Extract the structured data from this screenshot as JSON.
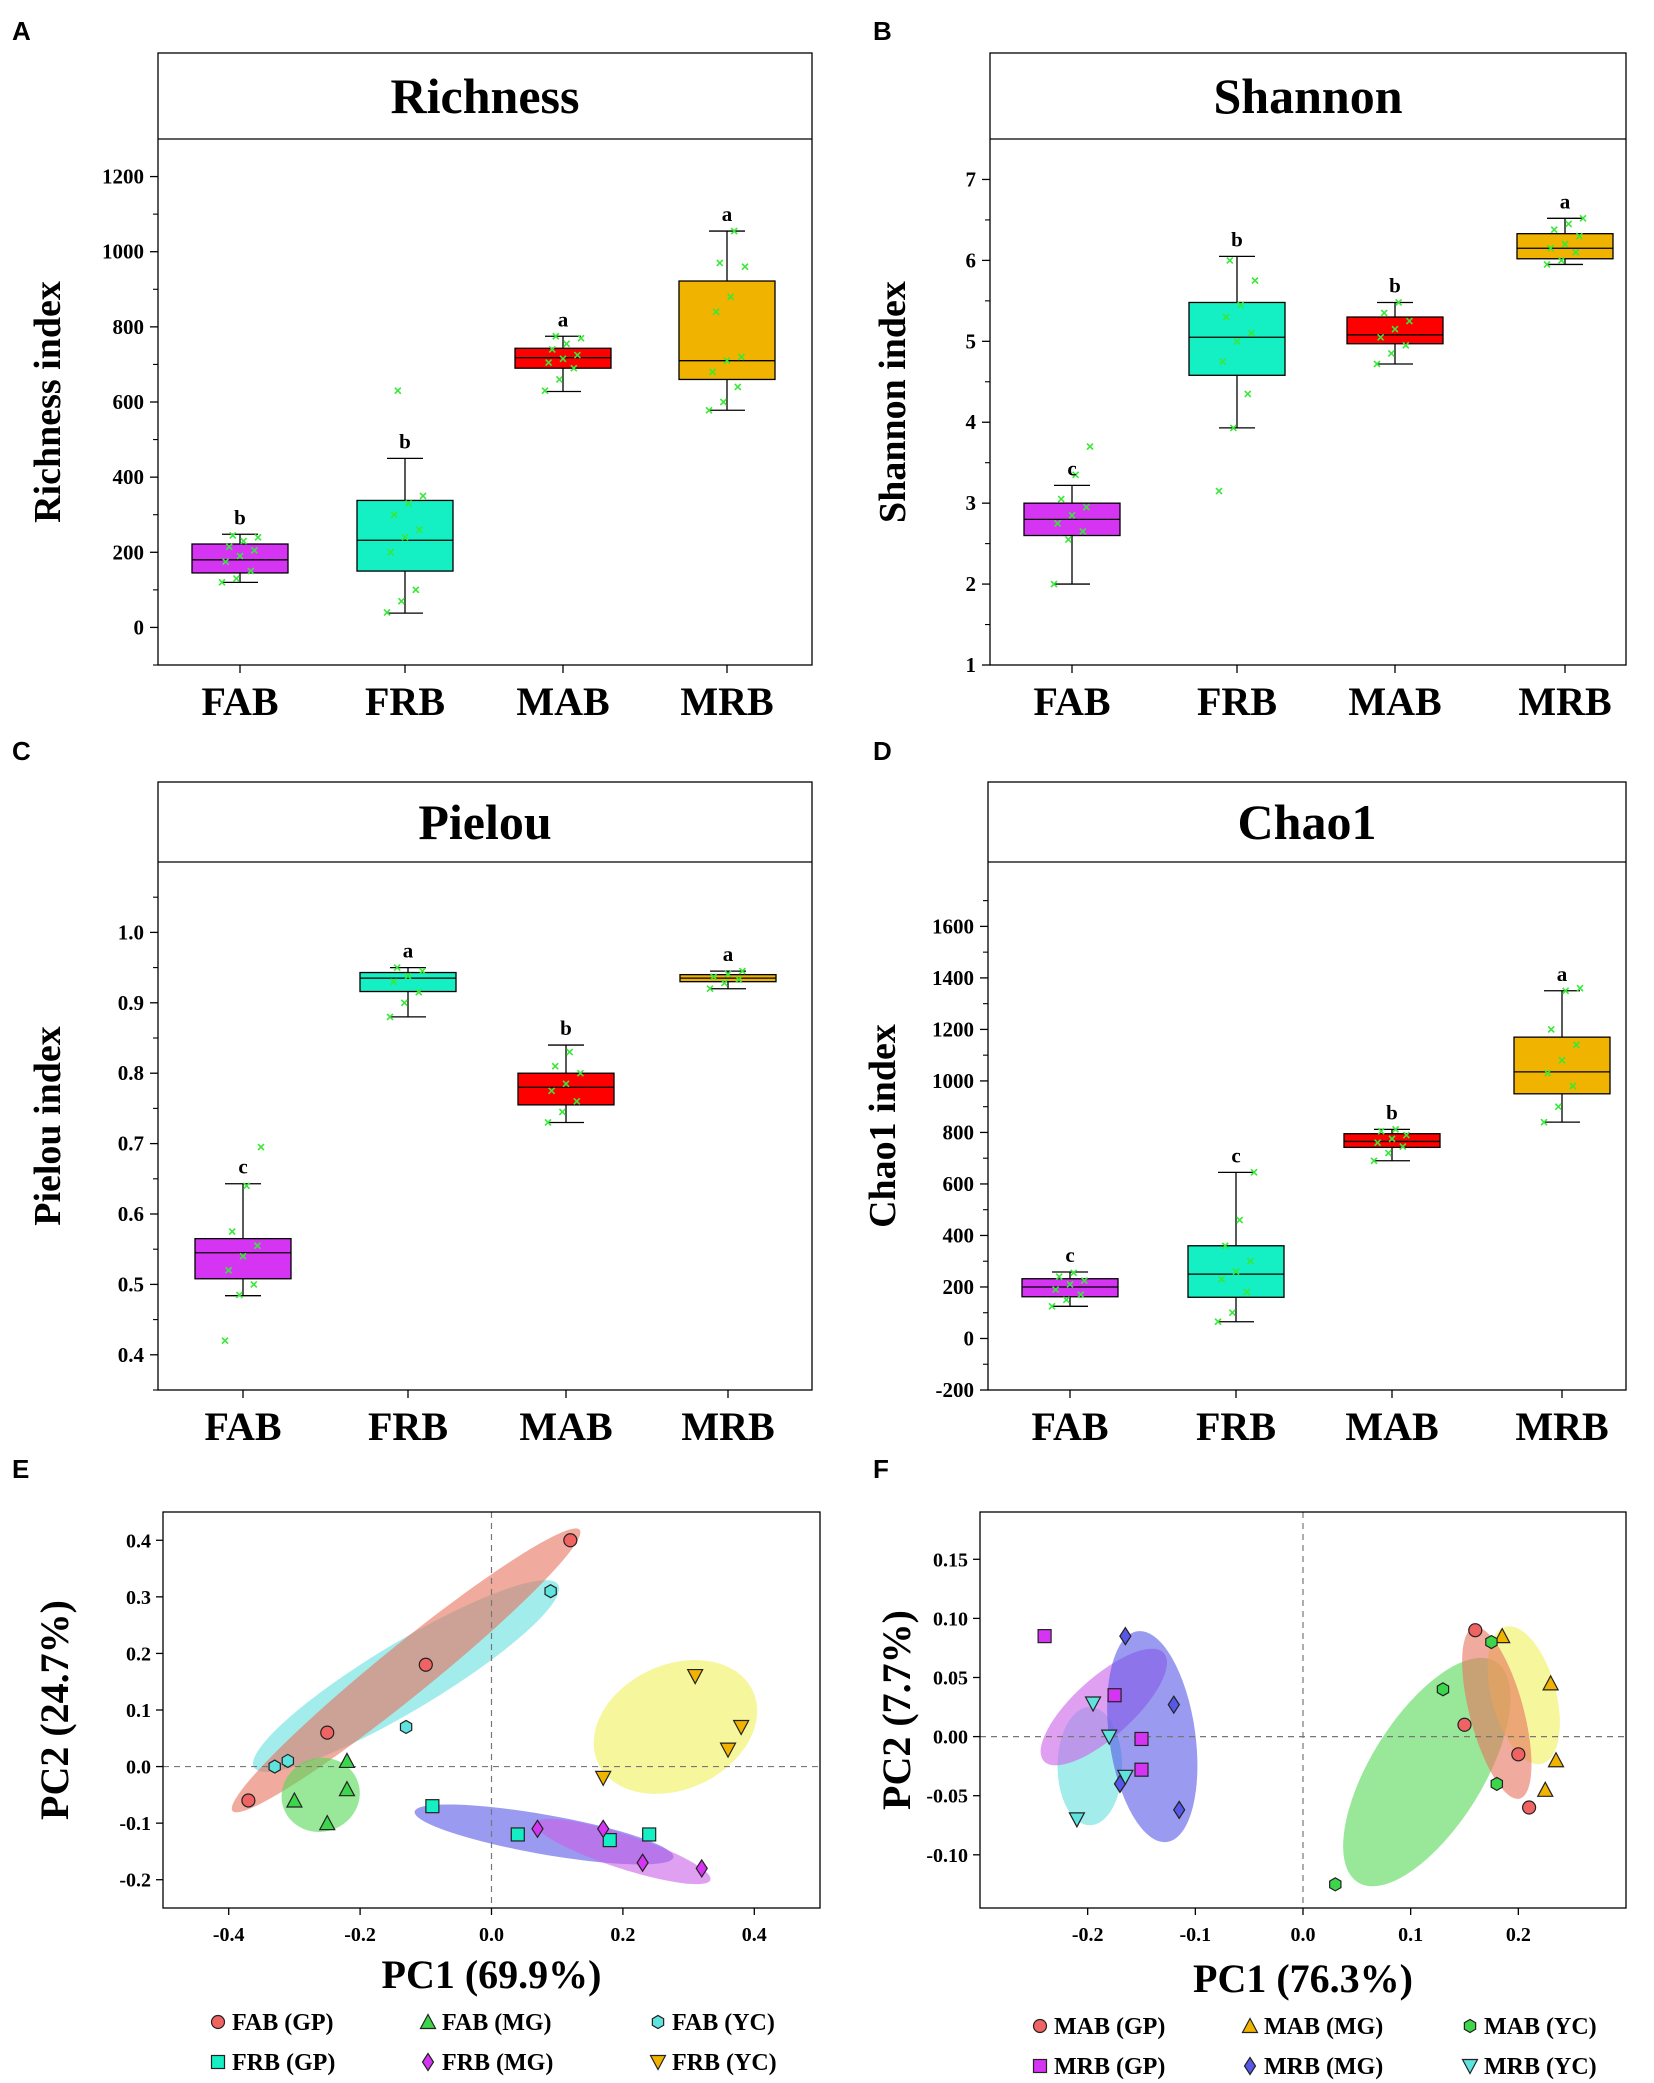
{
  "figure": {
    "panel_letters": [
      "A",
      "B",
      "C",
      "D",
      "E",
      "F"
    ]
  },
  "colors": {
    "FAB": "#d535f2",
    "FRB": "#14efc3",
    "MAB": "#ff0000",
    "MRB": "#f0b400",
    "jitter": "#38e838",
    "GP_fill": "#f06363",
    "MG_fill": "#3dd64b",
    "YC_fill": "#5fe3df",
    "ell_GP": "#e8725e",
    "ell_MG": "#55d957",
    "ell_YC": "#66e0e0",
    "ell_FRB_GP": "#5757e8",
    "ell_FRB_MG": "#cc60e8",
    "ell_FRB_YC": "#f0f05a"
  },
  "chart_data": [
    {
      "type": "box",
      "panel": "A",
      "title": "Richness",
      "ylabel": "Richness index",
      "ylim": [
        -100,
        1300
      ],
      "yticks": [
        0,
        200,
        400,
        600,
        800,
        1000,
        1200
      ],
      "categories": [
        "FAB",
        "FRB",
        "MAB",
        "MRB"
      ],
      "boxes": [
        {
          "min": 120,
          "q1": 145,
          "median": 180,
          "q3": 222,
          "max": 248,
          "letter": "b",
          "points": [
            120,
            130,
            150,
            175,
            190,
            205,
            215,
            230,
            240,
            245
          ]
        },
        {
          "min": 38,
          "q1": 150,
          "median": 232,
          "q3": 338,
          "max": 450,
          "letter": "b",
          "points": [
            40,
            70,
            100,
            200,
            240,
            260,
            300,
            330,
            350,
            630
          ]
        },
        {
          "min": 628,
          "q1": 690,
          "median": 718,
          "q3": 743,
          "max": 775,
          "letter": "a",
          "points": [
            630,
            660,
            690,
            705,
            715,
            725,
            740,
            755,
            770,
            775
          ]
        },
        {
          "min": 578,
          "q1": 660,
          "median": 710,
          "q3": 922,
          "max": 1055,
          "letter": "a",
          "points": [
            578,
            600,
            640,
            680,
            710,
            720,
            840,
            880,
            960,
            970,
            1055
          ]
        }
      ]
    },
    {
      "type": "box",
      "panel": "B",
      "title": "Shannon",
      "ylabel": "Shannon index",
      "ylim": [
        1,
        7.5
      ],
      "yticks": [
        1,
        2,
        3,
        4,
        5,
        6,
        7
      ],
      "categories": [
        "FAB",
        "FRB",
        "MAB",
        "MRB"
      ],
      "boxes": [
        {
          "min": 2.0,
          "q1": 2.6,
          "median": 2.8,
          "q3": 3.0,
          "max": 3.22,
          "letter": "c",
          "points": [
            2.0,
            2.55,
            2.65,
            2.75,
            2.85,
            2.95,
            3.05,
            3.35,
            3.7
          ]
        },
        {
          "min": 3.93,
          "q1": 4.58,
          "median": 5.05,
          "q3": 5.48,
          "max": 6.05,
          "letter": "b",
          "points": [
            3.15,
            3.93,
            4.35,
            4.75,
            5.0,
            5.1,
            5.3,
            5.45,
            5.75,
            6.0
          ]
        },
        {
          "min": 4.72,
          "q1": 4.97,
          "median": 5.08,
          "q3": 5.3,
          "max": 5.48,
          "letter": "b",
          "points": [
            4.72,
            4.85,
            4.95,
            5.05,
            5.15,
            5.25,
            5.35,
            5.48
          ]
        },
        {
          "min": 5.95,
          "q1": 6.02,
          "median": 6.15,
          "q3": 6.33,
          "max": 6.52,
          "letter": "a",
          "points": [
            5.95,
            6.0,
            6.1,
            6.15,
            6.2,
            6.3,
            6.38,
            6.45,
            6.52
          ]
        }
      ]
    },
    {
      "type": "box",
      "panel": "C",
      "title": "Pielou",
      "ylabel": "Pielou index",
      "ylim": [
        0.35,
        1.1
      ],
      "yticks": [
        0.4,
        0.5,
        0.6,
        0.7,
        0.8,
        0.9,
        1.0
      ],
      "categories": [
        "FAB",
        "FRB",
        "MAB",
        "MRB"
      ],
      "boxes": [
        {
          "min": 0.484,
          "q1": 0.508,
          "median": 0.545,
          "q3": 0.565,
          "max": 0.643,
          "letter": "c",
          "points": [
            0.42,
            0.485,
            0.5,
            0.52,
            0.54,
            0.555,
            0.575,
            0.64,
            0.695
          ]
        },
        {
          "min": 0.88,
          "q1": 0.916,
          "median": 0.935,
          "q3": 0.943,
          "max": 0.95,
          "letter": "a",
          "points": [
            0.88,
            0.9,
            0.915,
            0.93,
            0.938,
            0.945,
            0.95
          ]
        },
        {
          "min": 0.73,
          "q1": 0.755,
          "median": 0.78,
          "q3": 0.8,
          "max": 0.84,
          "letter": "b",
          "points": [
            0.73,
            0.745,
            0.76,
            0.775,
            0.785,
            0.8,
            0.81,
            0.83
          ]
        },
        {
          "min": 0.92,
          "q1": 0.93,
          "median": 0.935,
          "q3": 0.94,
          "max": 0.945,
          "letter": "a",
          "points": [
            0.92,
            0.928,
            0.933,
            0.937,
            0.941,
            0.945
          ]
        }
      ]
    },
    {
      "type": "box",
      "panel": "D",
      "title": "Chao1",
      "ylabel": "Chao1 index",
      "ylim": [
        -200,
        1850
      ],
      "yticks": [
        -200,
        0,
        200,
        400,
        600,
        800,
        1000,
        1200,
        1400,
        1600
      ],
      "categories": [
        "FAB",
        "FRB",
        "MAB",
        "MRB"
      ],
      "boxes": [
        {
          "min": 125,
          "q1": 162,
          "median": 200,
          "q3": 232,
          "max": 258,
          "letter": "c",
          "points": [
            125,
            150,
            170,
            190,
            210,
            225,
            240,
            255
          ]
        },
        {
          "min": 65,
          "q1": 160,
          "median": 250,
          "q3": 360,
          "max": 645,
          "letter": "c",
          "points": [
            65,
            100,
            180,
            230,
            260,
            300,
            360,
            460,
            645
          ]
        },
        {
          "min": 690,
          "q1": 742,
          "median": 765,
          "q3": 795,
          "max": 812,
          "letter": "b",
          "points": [
            690,
            720,
            745,
            760,
            775,
            790,
            805,
            812
          ]
        },
        {
          "min": 840,
          "q1": 950,
          "median": 1035,
          "q3": 1170,
          "max": 1350,
          "letter": "a",
          "points": [
            840,
            900,
            980,
            1030,
            1080,
            1140,
            1200,
            1350,
            1360
          ]
        }
      ]
    },
    {
      "type": "scatter",
      "panel": "E",
      "xlabel": "PC1 (69.9%)",
      "ylabel": "PC2 (24.7%)",
      "xlim": [
        -0.5,
        0.5
      ],
      "ylim": [
        -0.25,
        0.45
      ],
      "xticks": [
        -0.4,
        -0.2,
        0.0,
        0.2,
        0.4
      ],
      "yticks": [
        -0.2,
        -0.1,
        0.0,
        0.1,
        0.2,
        0.3,
        0.4
      ],
      "ellipses": [
        {
          "color": "ell_YC",
          "cx": -0.13,
          "cy": 0.16,
          "rx": 0.27,
          "ry": 0.06,
          "angle": -31
        },
        {
          "color": "ell_GP",
          "cx": -0.13,
          "cy": 0.17,
          "rx": 0.34,
          "ry": 0.045,
          "angle": -39
        },
        {
          "color": "ell_MG",
          "cx": -0.26,
          "cy": -0.05,
          "rx": 0.06,
          "ry": 0.065,
          "angle": -20
        },
        {
          "color": "ell_FRB_YC",
          "cx": 0.28,
          "cy": 0.07,
          "rx": 0.13,
          "ry": 0.11,
          "angle": -25
        },
        {
          "color": "ell_FRB_GP",
          "cx": 0.08,
          "cy": -0.12,
          "rx": 0.2,
          "ry": 0.035,
          "angle": 10
        },
        {
          "color": "ell_FRB_MG",
          "cx": 0.2,
          "cy": -0.15,
          "rx": 0.14,
          "ry": 0.03,
          "angle": 18
        }
      ],
      "series": [
        {
          "name": "FAB (GP)",
          "marker": "circle",
          "fill": "GP_fill",
          "x": [
            -0.37,
            -0.25,
            -0.1,
            0.12
          ],
          "y": [
            -0.06,
            0.06,
            0.18,
            0.4
          ]
        },
        {
          "name": "FAB (MG)",
          "marker": "triangle-up",
          "fill": "MG_fill",
          "x": [
            -0.3,
            -0.25,
            -0.22,
            -0.22
          ],
          "y": [
            -0.06,
            -0.1,
            -0.04,
            0.01
          ]
        },
        {
          "name": "FAB (YC)",
          "marker": "hexagon",
          "fill": "YC_fill",
          "x": [
            -0.33,
            -0.31,
            -0.13,
            0.09
          ],
          "y": [
            0.0,
            0.01,
            0.07,
            0.31
          ]
        },
        {
          "name": "FRB (GP)",
          "marker": "square",
          "fill": "FRB",
          "x": [
            -0.09,
            0.04,
            0.18,
            0.24
          ],
          "y": [
            -0.07,
            -0.12,
            -0.13,
            -0.12
          ]
        },
        {
          "name": "FRB (MG)",
          "marker": "diamond",
          "fill": "FAB",
          "x": [
            0.07,
            0.17,
            0.23,
            0.32
          ],
          "y": [
            -0.11,
            -0.11,
            -0.17,
            -0.18
          ]
        },
        {
          "name": "FRB (YC)",
          "marker": "triangle-down",
          "fill": "MRB",
          "x": [
            0.17,
            0.31,
            0.36,
            0.38
          ],
          "y": [
            -0.02,
            0.16,
            0.03,
            0.07
          ]
        }
      ]
    },
    {
      "type": "scatter",
      "panel": "F",
      "xlabel": "PC1 (76.3%)",
      "ylabel": "PC2 (7.7%)",
      "xlim": [
        -0.3,
        0.3
      ],
      "ylim": [
        -0.145,
        0.19
      ],
      "xticks": [
        -0.2,
        -0.1,
        0.0,
        0.1,
        0.2
      ],
      "yticks": [
        -0.1,
        -0.05,
        0.0,
        0.05,
        0.1,
        0.15
      ],
      "ellipses": [
        {
          "color": "ell_YC",
          "cx": -0.198,
          "cy": -0.025,
          "rx": 0.03,
          "ry": 0.05,
          "angle": 0
        },
        {
          "color": "ell_FRB_MG",
          "cx": -0.185,
          "cy": 0.025,
          "rx": 0.075,
          "ry": 0.025,
          "angle": -42
        },
        {
          "color": "ell_FRB_GP",
          "cx": -0.14,
          "cy": 0.0,
          "rx": 0.04,
          "ry": 0.09,
          "angle": -8
        },
        {
          "color": "ell_MG",
          "cx": 0.115,
          "cy": -0.03,
          "rx": 0.052,
          "ry": 0.11,
          "angle": 32
        },
        {
          "color": "ell_FRB_YC",
          "cx": 0.205,
          "cy": 0.035,
          "rx": 0.03,
          "ry": 0.06,
          "angle": -15
        },
        {
          "color": "ell_GP",
          "cx": 0.18,
          "cy": 0.02,
          "rx": 0.025,
          "ry": 0.075,
          "angle": -15
        }
      ],
      "series": [
        {
          "name": "MAB (GP)",
          "marker": "circle",
          "fill": "GP_fill",
          "x": [
            0.16,
            0.15,
            0.2,
            0.21
          ],
          "y": [
            0.09,
            0.01,
            -0.015,
            -0.06
          ]
        },
        {
          "name": "MAB (MG)",
          "marker": "triangle-up",
          "fill": "MRB",
          "x": [
            0.185,
            0.23,
            0.235,
            0.225
          ],
          "y": [
            0.085,
            0.045,
            -0.02,
            -0.045
          ]
        },
        {
          "name": "MAB (YC)",
          "marker": "hexagon",
          "fill": "MG_fill",
          "x": [
            0.03,
            0.13,
            0.175,
            0.18
          ],
          "y": [
            -0.125,
            0.04,
            0.08,
            -0.04
          ]
        },
        {
          "name": "MRB (GP)",
          "marker": "square",
          "fill": "FAB",
          "x": [
            -0.24,
            -0.175,
            -0.15,
            -0.15
          ],
          "y": [
            0.085,
            0.035,
            -0.002,
            -0.028
          ]
        },
        {
          "name": "MRB (MG)",
          "marker": "diamond",
          "fill": "ell_FRB_GP",
          "x": [
            -0.165,
            -0.12,
            -0.115,
            -0.17
          ],
          "y": [
            0.085,
            0.027,
            -0.062,
            -0.04
          ]
        },
        {
          "name": "MRB (YC)",
          "marker": "triangle-down",
          "fill": "YC_fill",
          "x": [
            -0.21,
            -0.195,
            -0.18,
            -0.165
          ],
          "y": [
            -0.07,
            0.028,
            0.0,
            -0.034
          ]
        }
      ]
    }
  ]
}
